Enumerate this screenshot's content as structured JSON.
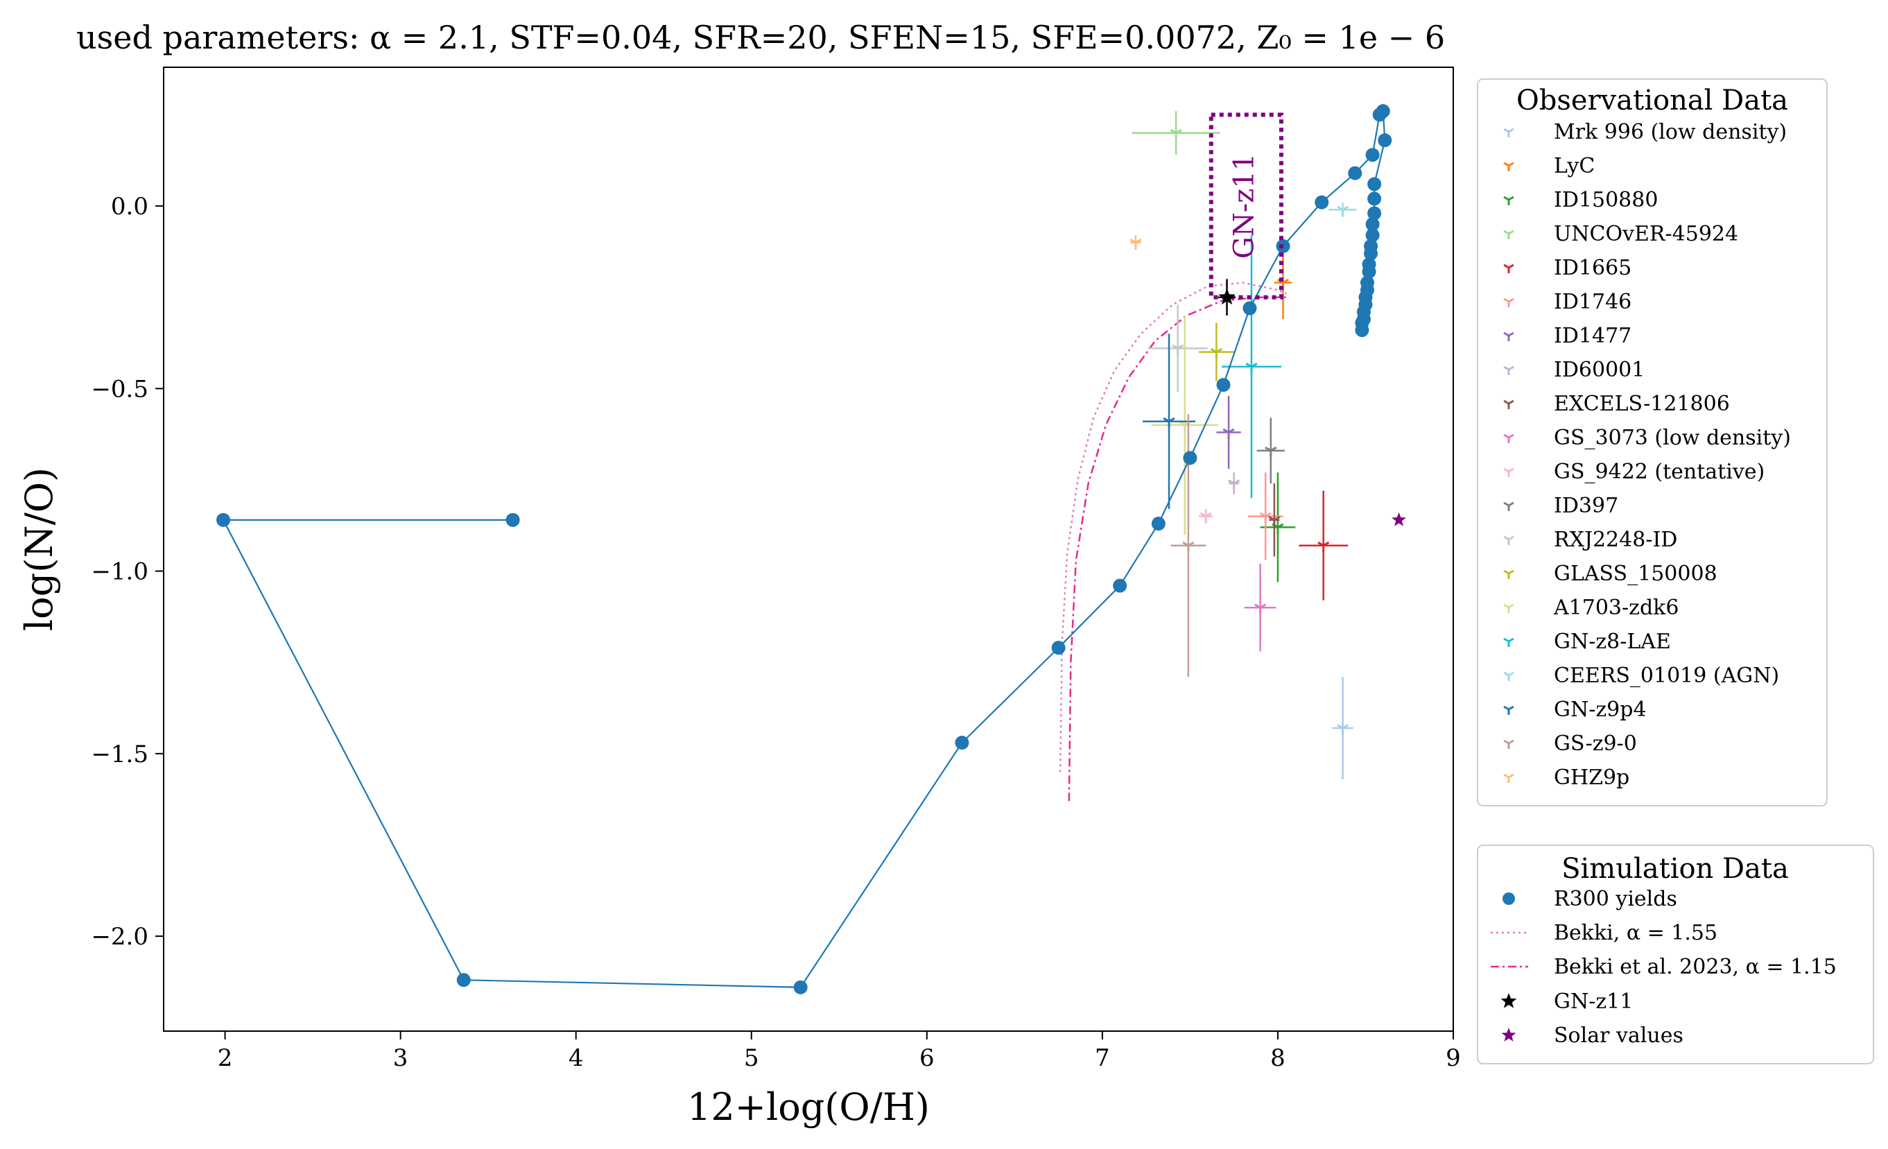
{
  "chart_data": {
    "type": "scatter",
    "title": "used parameters: α = 2.1, STF=0.04, SFR=20, SFEN=15, SFE=0.0072, Z₀ = 1e − 6",
    "xlabel": "12+log(O/H)",
    "ylabel": "log(N/O)",
    "xlim": [
      1.65,
      9.0
    ],
    "ylim": [
      -2.26,
      0.38
    ],
    "xticks": [
      2,
      3,
      4,
      5,
      6,
      7,
      8,
      9
    ],
    "yticks": [
      0.0,
      -0.5,
      -1.0,
      -1.5,
      -2.0
    ],
    "xtick_labels": [
      "2",
      "3",
      "4",
      "5",
      "6",
      "7",
      "8",
      "9"
    ],
    "ytick_labels": [
      "0.0",
      "−0.5",
      "−1.0",
      "−1.5",
      "−2.0"
    ],
    "grid": false,
    "obs_legend_title": "Observational Data",
    "sim_legend_title": "Simulation Data",
    "observational": [
      {
        "name": "Mrk 996 (low density)",
        "color": "#aec7e8",
        "x": 8.37,
        "y": -1.43,
        "xerr": 0.06,
        "yerr": 0.14
      },
      {
        "name": "LyC",
        "color": "#ff7f0e",
        "x": 8.03,
        "y": -0.21,
        "xerr": 0.05,
        "yerr": 0.1
      },
      {
        "name": "ID150880",
        "color": "#2ca02c",
        "x": 8.0,
        "y": -0.88,
        "xerr": 0.1,
        "yerr": 0.15
      },
      {
        "name": "UNCOvER-45924",
        "color": "#98df8a",
        "x": 7.42,
        "y": 0.2,
        "xerr": 0.25,
        "yerr": 0.06
      },
      {
        "name": "ID1665",
        "color": "#d62728",
        "x": 8.26,
        "y": -0.93,
        "xerr": 0.14,
        "yerr": 0.15
      },
      {
        "name": "ID1746",
        "color": "#ff9896",
        "x": 7.93,
        "y": -0.85,
        "xerr": 0.1,
        "yerr": 0.12
      },
      {
        "name": "ID1477",
        "color": "#9467bd",
        "x": 7.72,
        "y": -0.62,
        "xerr": 0.07,
        "yerr": 0.1
      },
      {
        "name": "ID60001",
        "color": "#c5b0d5",
        "x": 7.75,
        "y": -0.76,
        "xerr": 0.03,
        "yerr": 0.03
      },
      {
        "name": "EXCELS-121806",
        "color": "#8c564b",
        "x": 7.98,
        "y": -0.86,
        "xerr": 0.03,
        "yerr": 0.1
      },
      {
        "name": "GS_3073 (low density)",
        "color": "#e377c2",
        "x": 7.9,
        "y": -1.1,
        "xerr": 0.09,
        "yerr": 0.12
      },
      {
        "name": "GS_9422 (tentative)",
        "color": "#f7b6d2",
        "x": 7.59,
        "y": -0.85,
        "xerr": 0.04,
        "yerr": 0.02
      },
      {
        "name": "ID397",
        "color": "#7f7f7f",
        "x": 7.96,
        "y": -0.67,
        "xerr": 0.08,
        "yerr": 0.09
      },
      {
        "name": "RXJ2248-ID",
        "color": "#c7c7c7",
        "x": 7.43,
        "y": -0.39,
        "xerr": 0.17,
        "yerr": 0.12
      },
      {
        "name": "GLASS_150008",
        "color": "#bcbd22",
        "x": 7.65,
        "y": -0.4,
        "xerr": 0.1,
        "yerr": 0.08
      },
      {
        "name": "A1703-zdk6",
        "color": "#dbdb8d",
        "x": 7.47,
        "y": -0.6,
        "xerr": 0.19,
        "yerr": 0.3
      },
      {
        "name": "GN-z8-LAE",
        "color": "#17becf",
        "x": 7.85,
        "y": -0.44,
        "xerr": 0.17,
        "yerr": 0.36
      },
      {
        "name": "CEERS_01019 (AGN)",
        "color": "#9edae5",
        "x": 8.37,
        "y": -0.01,
        "xerr": 0.08,
        "yerr": 0.02
      },
      {
        "name": "GN-z9p4",
        "color": "#1f77b4",
        "x": 7.38,
        "y": -0.59,
        "xerr": 0.15,
        "yerr": 0.24
      },
      {
        "name": "GS-z9-0",
        "color": "#c49c94",
        "x": 7.49,
        "y": -0.93,
        "xerr": 0.1,
        "yerr": 0.36
      },
      {
        "name": "GHZ9p",
        "color": "#ffbb78",
        "x": 7.19,
        "y": -0.1,
        "xerr": 0.03,
        "yerr": 0.02
      }
    ],
    "simulation": {
      "r300_label": "R300 yields",
      "r300_color": "#1f77b4",
      "r300_points": [
        [
          3.64,
          -0.86
        ],
        [
          1.99,
          -0.86
        ],
        [
          3.36,
          -2.12
        ],
        [
          5.28,
          -2.14
        ],
        [
          6.2,
          -1.47
        ],
        [
          6.75,
          -1.21
        ],
        [
          7.1,
          -1.04
        ],
        [
          7.32,
          -0.87
        ],
        [
          7.5,
          -0.69
        ],
        [
          7.69,
          -0.49
        ],
        [
          7.84,
          -0.28
        ],
        [
          8.03,
          -0.11
        ],
        [
          8.25,
          0.01
        ],
        [
          8.44,
          0.09
        ],
        [
          8.54,
          0.14
        ],
        [
          8.58,
          0.25
        ],
        [
          8.6,
          0.26
        ],
        [
          8.61,
          0.18
        ],
        [
          8.55,
          0.06
        ],
        [
          8.55,
          0.02
        ],
        [
          8.55,
          -0.02
        ],
        [
          8.54,
          -0.05
        ],
        [
          8.54,
          -0.08
        ],
        [
          8.53,
          -0.11
        ],
        [
          8.53,
          -0.13
        ],
        [
          8.52,
          -0.16
        ],
        [
          8.52,
          -0.18
        ],
        [
          8.51,
          -0.21
        ],
        [
          8.51,
          -0.23
        ],
        [
          8.5,
          -0.25
        ],
        [
          8.5,
          -0.27
        ],
        [
          8.49,
          -0.29
        ],
        [
          8.49,
          -0.31
        ],
        [
          8.48,
          -0.32
        ],
        [
          8.48,
          -0.34
        ]
      ],
      "bekki1_label": "Bekki, α = 1.55",
      "bekki1_color": "#e377c2",
      "bekki1_points": [
        [
          6.76,
          -1.55
        ],
        [
          6.77,
          -1.2
        ],
        [
          6.8,
          -0.95
        ],
        [
          6.86,
          -0.75
        ],
        [
          6.95,
          -0.58
        ],
        [
          7.07,
          -0.45
        ],
        [
          7.22,
          -0.35
        ],
        [
          7.4,
          -0.27
        ],
        [
          7.6,
          -0.22
        ],
        [
          7.8,
          -0.21
        ],
        [
          8.0,
          -0.23
        ],
        [
          8.05,
          -0.24
        ]
      ],
      "bekki2_label": "Bekki et al. 2023, α = 1.15",
      "bekki2_color": "#e7298a",
      "bekki2_points": [
        [
          6.81,
          -1.63
        ],
        [
          6.82,
          -1.25
        ],
        [
          6.85,
          -0.97
        ],
        [
          6.92,
          -0.76
        ],
        [
          7.02,
          -0.6
        ],
        [
          7.15,
          -0.47
        ],
        [
          7.3,
          -0.37
        ],
        [
          7.48,
          -0.3
        ],
        [
          7.68,
          -0.26
        ],
        [
          7.88,
          -0.25
        ],
        [
          8.05,
          -0.25
        ]
      ],
      "gnz11_label": "GN-z11",
      "gnz11": {
        "x": 7.71,
        "y": -0.25,
        "xerr": 0.05,
        "yerr": 0.05,
        "color": "#000000"
      },
      "solar_label": "Solar values",
      "solar": {
        "x": 8.69,
        "y": -0.86,
        "color": "#800080"
      }
    },
    "box": {
      "label": "GN-z11",
      "color": "#800080",
      "x0": 7.62,
      "x1": 8.02,
      "y0": -0.25,
      "y1": 0.25
    }
  }
}
